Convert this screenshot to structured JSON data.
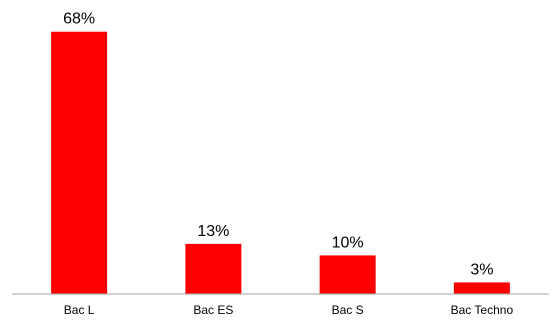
{
  "chart_data": {
    "type": "bar",
    "categories": [
      "Bac L",
      "Bac ES",
      "Bac S",
      "Bac Techno"
    ],
    "values": [
      68,
      13,
      10,
      3
    ],
    "value_labels": [
      "68%",
      "13%",
      "10%",
      "3%"
    ],
    "ylim": [
      0,
      70
    ],
    "grid": false,
    "legend": "none",
    "bar_color": "#ff0000",
    "axis_color": "#a6a6a6"
  }
}
